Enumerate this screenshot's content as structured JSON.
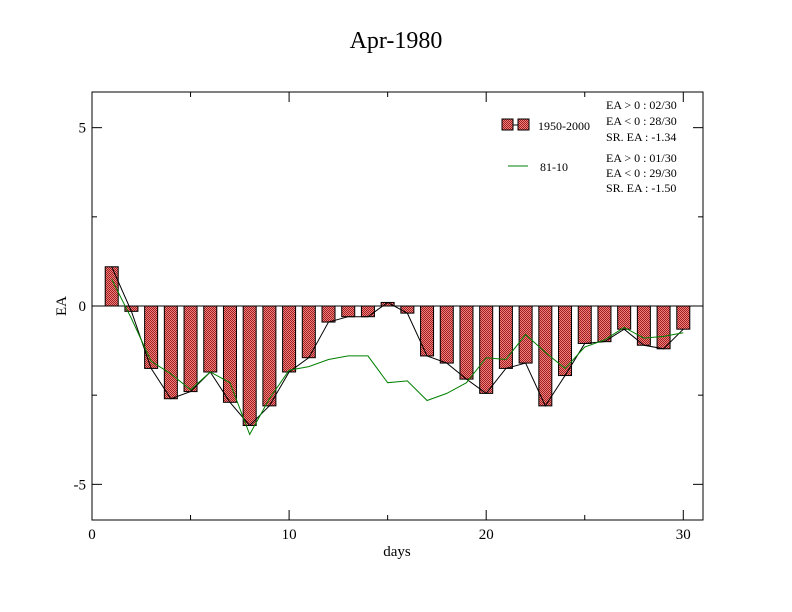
{
  "chart_data": {
    "type": "bar",
    "title": "Apr-1980",
    "xlabel": "days",
    "ylabel": "EA",
    "xlim": [
      0,
      31
    ],
    "ylim": [
      -6,
      6
    ],
    "x_ticks": [
      0,
      10,
      20,
      30
    ],
    "x_tick_labels": [
      "0",
      "10",
      "20",
      "30"
    ],
    "y_ticks": [
      -5,
      0,
      5
    ],
    "y_tick_labels": [
      "-5",
      "0",
      "5"
    ],
    "grid": false,
    "legend_position": "top-right",
    "x": [
      1,
      2,
      3,
      4,
      5,
      6,
      7,
      8,
      9,
      10,
      11,
      12,
      13,
      14,
      15,
      16,
      17,
      18,
      19,
      20,
      21,
      22,
      23,
      24,
      25,
      26,
      27,
      28,
      29,
      30
    ],
    "series": [
      {
        "name": "1950-2000",
        "kind": "bar",
        "values": [
          1.1,
          -0.15,
          -1.75,
          -2.6,
          -2.4,
          -1.85,
          -2.7,
          -3.35,
          -2.8,
          -1.85,
          -1.45,
          -0.45,
          -0.3,
          -0.3,
          0.1,
          -0.2,
          -1.4,
          -1.6,
          -2.05,
          -2.45,
          -1.75,
          -1.6,
          -2.8,
          -1.95,
          -1.05,
          -1.0,
          -0.65,
          -1.1,
          -1.2,
          -0.65
        ],
        "stats": [
          "EA > 0 : 02/30",
          "EA < 0 : 28/30",
          "SR. EA : -1.34"
        ]
      },
      {
        "name": "81-10",
        "kind": "line",
        "color": "#008000",
        "values": [
          0.75,
          -0.35,
          -1.55,
          -1.9,
          -2.35,
          -1.85,
          -2.15,
          -3.6,
          -2.6,
          -1.8,
          -1.7,
          -1.5,
          -1.4,
          -1.4,
          -2.15,
          -2.1,
          -2.65,
          -2.45,
          -2.15,
          -1.45,
          -1.5,
          -0.8,
          -1.3,
          -1.75,
          -1.15,
          -0.95,
          -0.6,
          -0.9,
          -0.85,
          -0.75
        ],
        "stats": [
          "EA > 0 : 01/30",
          "EA < 0 : 29/30",
          "SR. EA : -1.50"
        ]
      }
    ],
    "colors": {
      "bar_fill": "#f08080",
      "bar_pattern": "#8b0000",
      "bar_outline": "#000000",
      "bar_connector": "#000000",
      "line_series": "#008000"
    }
  }
}
